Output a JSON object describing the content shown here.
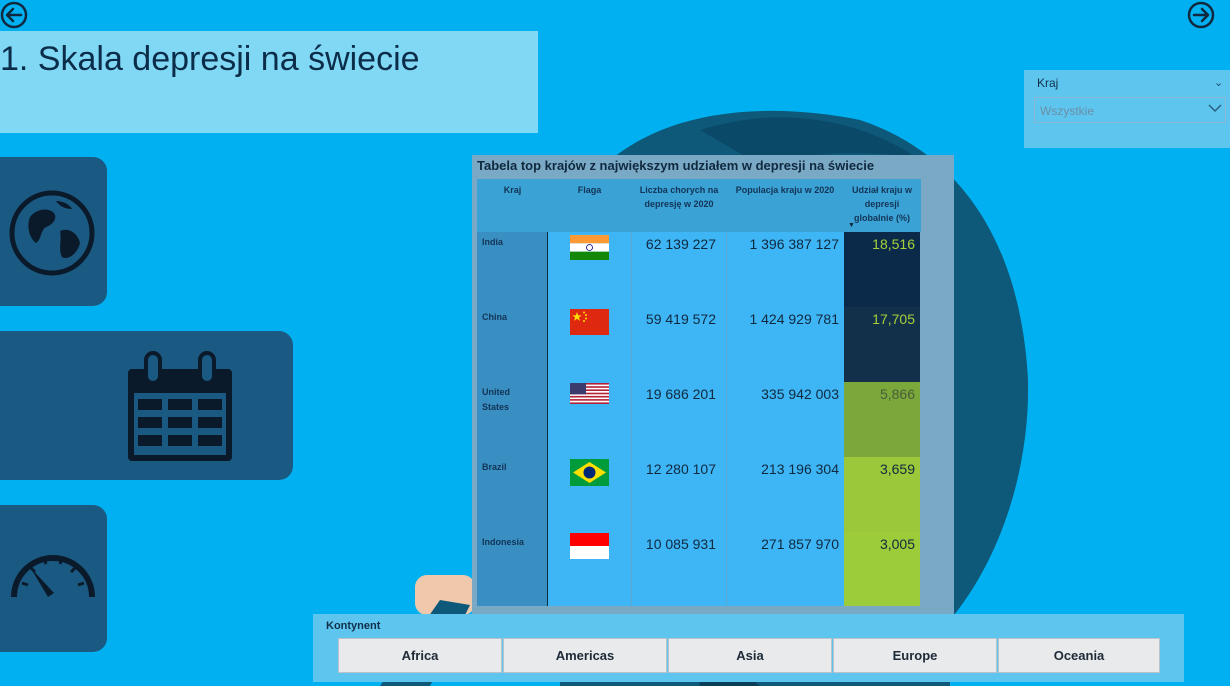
{
  "header": {
    "title": "1. Skala depresji na świecie"
  },
  "filter": {
    "label": "Kraj",
    "value": "Wszystkie"
  },
  "table": {
    "title": "Tabela top krajów z największym udziałem w depresji na świecie",
    "columns": [
      "Kraj",
      "Flaga",
      "Liczba chorych na depresję w 2020",
      "Populacja kraju w 2020",
      "Udział kraju w depresji globalnie (%)"
    ],
    "rows": [
      {
        "country": "India",
        "flag": "india-flag",
        "patients": "62 139 227",
        "population": "1 396 387 127",
        "share": "18,516"
      },
      {
        "country": "China",
        "flag": "china-flag",
        "patients": "59 419 572",
        "population": "1 424 929 781",
        "share": "17,705"
      },
      {
        "country": "United States",
        "flag": "usa-flag",
        "patients": "19 686 201",
        "population": "335 942 003",
        "share": "5,866"
      },
      {
        "country": "Brazil",
        "flag": "brazil-flag",
        "patients": "12 280 107",
        "population": "213 196 304",
        "share": "3,659"
      },
      {
        "country": "Indonesia",
        "flag": "indonesia-flag",
        "patients": "10 085 931",
        "population": "271 857 970",
        "share": "3,005"
      }
    ],
    "share_colors": [
      "#0b2a4a",
      "#12304a",
      "#7aa83a",
      "#9ac83a",
      "#9ccc3a"
    ],
    "share_text_colors": [
      "#a6d03a",
      "#a6d03a",
      "#4a5d3a",
      "#10293f",
      "#10293f"
    ]
  },
  "slicer": {
    "label": "Kontynent",
    "options": [
      "Africa",
      "Americas",
      "Asia",
      "Europe",
      "Oceania"
    ]
  },
  "icons": {
    "back": "arrow-left-icon",
    "forward": "arrow-right-icon",
    "globe": "globe-icon",
    "calendar": "calendar-icon",
    "gauge": "gauge-icon"
  }
}
